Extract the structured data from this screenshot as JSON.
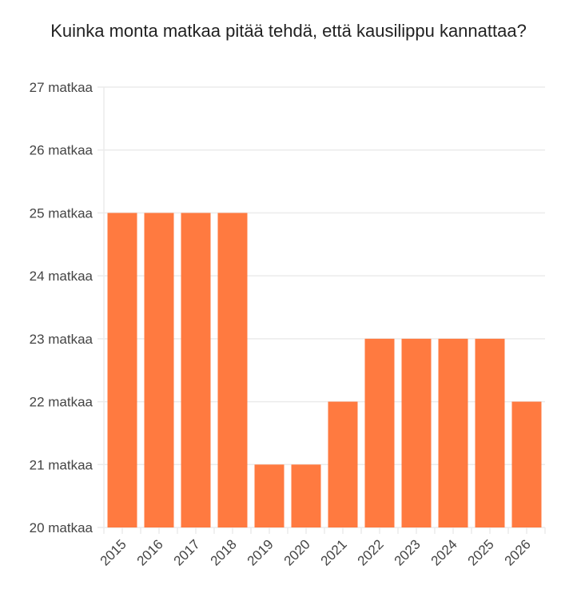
{
  "chart_data": {
    "type": "bar",
    "title": "Kuinka monta matkaa pitää tehdä, että kausilippu kannattaa?",
    "categories": [
      "2015",
      "2016",
      "2017",
      "2018",
      "2019",
      "2020",
      "2021",
      "2022",
      "2023",
      "2024",
      "2025",
      "2026"
    ],
    "values": [
      25,
      25,
      25,
      25,
      21,
      21,
      22,
      23,
      23,
      23,
      23,
      22
    ],
    "ylim": [
      20,
      27
    ],
    "yticks": [
      20,
      21,
      22,
      23,
      24,
      25,
      26,
      27
    ],
    "ytick_labels": [
      "20 matkaa",
      "21 matkaa",
      "22 matkaa",
      "23 matkaa",
      "24 matkaa",
      "25 matkaa",
      "26 matkaa",
      "27 matkaa"
    ],
    "xlabel": "",
    "ylabel": "",
    "grid": true,
    "bar_color": "#ff7a40"
  }
}
